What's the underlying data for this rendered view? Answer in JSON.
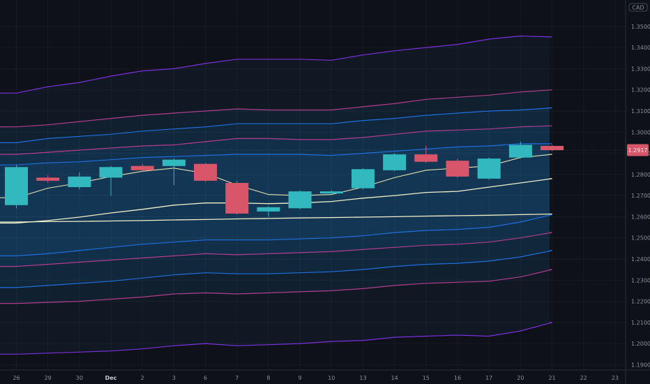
{
  "chart_data": {
    "type": "candlestick",
    "currency_label": "CAD",
    "last_price_label": "1.2917",
    "y_axis": {
      "min": 1.1875,
      "max": 1.3625,
      "ticks": [
        "1.19000",
        "1.20000",
        "1.21000",
        "1.22000",
        "1.23000",
        "1.24000",
        "1.25000",
        "1.26000",
        "1.27000",
        "1.28000",
        "1.29000",
        "1.30000",
        "1.31000",
        "1.32000",
        "1.33000",
        "1.34000",
        "1.35000"
      ]
    },
    "x_axis": {
      "labels": [
        "26",
        "29",
        "30",
        "Dec",
        "2",
        "3",
        "6",
        "7",
        "8",
        "9",
        "10",
        "13",
        "14",
        "15",
        "16",
        "17",
        "20",
        "21",
        "22",
        "23"
      ],
      "bold_labels": [
        "Dec"
      ]
    },
    "candles": [
      {
        "open": 1.2655,
        "close": 1.2835,
        "high": 1.2845,
        "low": 1.264,
        "color": "up"
      },
      {
        "open": 1.277,
        "close": 1.2785,
        "high": 1.2795,
        "low": 1.276,
        "color": "down"
      },
      {
        "open": 1.274,
        "close": 1.279,
        "high": 1.281,
        "low": 1.273,
        "color": "up"
      },
      {
        "open": 1.2785,
        "close": 1.2835,
        "high": 1.284,
        "low": 1.27,
        "color": "up"
      },
      {
        "open": 1.284,
        "close": 1.282,
        "high": 1.285,
        "low": 1.2815,
        "color": "down"
      },
      {
        "open": 1.284,
        "close": 1.287,
        "high": 1.2875,
        "low": 1.275,
        "color": "up"
      },
      {
        "open": 1.285,
        "close": 1.277,
        "high": 1.2855,
        "low": 1.2765,
        "color": "down"
      },
      {
        "open": 1.276,
        "close": 1.2615,
        "high": 1.277,
        "low": 1.261,
        "color": "down"
      },
      {
        "open": 1.2625,
        "close": 1.2645,
        "high": 1.265,
        "low": 1.26,
        "color": "up"
      },
      {
        "open": 1.264,
        "close": 1.272,
        "high": 1.2725,
        "low": 1.2635,
        "color": "up"
      },
      {
        "open": 1.271,
        "close": 1.272,
        "high": 1.2725,
        "low": 1.2705,
        "color": "up"
      },
      {
        "open": 1.2735,
        "close": 1.2825,
        "high": 1.283,
        "low": 1.273,
        "color": "up"
      },
      {
        "open": 1.282,
        "close": 1.2895,
        "high": 1.29,
        "low": 1.2815,
        "color": "up"
      },
      {
        "open": 1.2895,
        "close": 1.286,
        "high": 1.2935,
        "low": 1.2855,
        "color": "down"
      },
      {
        "open": 1.2865,
        "close": 1.279,
        "high": 1.2875,
        "low": 1.2785,
        "color": "down"
      },
      {
        "open": 1.278,
        "close": 1.2875,
        "high": 1.288,
        "low": 1.2775,
        "color": "up"
      },
      {
        "open": 1.288,
        "close": 1.294,
        "high": 1.2955,
        "low": 1.2875,
        "color": "up"
      },
      {
        "open": 1.2935,
        "close": 1.2915,
        "high": 1.294,
        "low": 1.291,
        "color": "down"
      }
    ],
    "lines": {
      "short_ma": [
        1.269,
        1.2735,
        1.276,
        1.279,
        1.2815,
        1.283,
        1.2805,
        1.275,
        1.2705,
        1.27,
        1.2705,
        1.274,
        1.2785,
        1.282,
        1.283,
        1.284,
        1.288,
        1.2895
      ],
      "mid_ma": [
        1.257,
        1.2582,
        1.2598,
        1.2618,
        1.2635,
        1.2655,
        1.2665,
        1.2665,
        1.2662,
        1.2665,
        1.2672,
        1.2688,
        1.27,
        1.2715,
        1.272,
        1.274,
        1.276,
        1.278
      ],
      "long_ma": [
        1.2575,
        1.2577,
        1.2578,
        1.258,
        1.2582,
        1.2585,
        1.2587,
        1.259,
        1.2592,
        1.2594,
        1.2596,
        1.2598,
        1.26,
        1.2603,
        1.2605,
        1.2607,
        1.261,
        1.2613
      ]
    },
    "bands": [
      {
        "color": "#7b2fe0",
        "upper": [
          1.3185,
          1.3215,
          1.3235,
          1.3265,
          1.329,
          1.33,
          1.3325,
          1.3345,
          1.3345,
          1.3345,
          1.334,
          1.3365,
          1.3385,
          1.34,
          1.3415,
          1.344,
          1.3455,
          1.345
        ],
        "lower": [
          1.195,
          1.1955,
          1.196,
          1.1965,
          1.1975,
          1.199,
          1.2,
          1.199,
          1.1995,
          1.2,
          1.201,
          1.2015,
          1.203,
          1.2035,
          1.204,
          1.2035,
          1.206,
          1.21
        ]
      },
      {
        "color": "#b43c8f",
        "upper": [
          1.3025,
          1.3035,
          1.305,
          1.3065,
          1.308,
          1.309,
          1.31,
          1.311,
          1.3105,
          1.3105,
          1.3105,
          1.312,
          1.3135,
          1.3155,
          1.3165,
          1.3175,
          1.319,
          1.32
        ],
        "lower": [
          1.219,
          1.2195,
          1.22,
          1.221,
          1.222,
          1.2235,
          1.224,
          1.2235,
          1.224,
          1.2245,
          1.225,
          1.226,
          1.2275,
          1.2285,
          1.229,
          1.2295,
          1.2315,
          1.235
        ]
      },
      {
        "color": "#1e6fe0",
        "upper": [
          1.295,
          1.297,
          1.298,
          1.299,
          1.3005,
          1.3015,
          1.3025,
          1.304,
          1.304,
          1.304,
          1.304,
          1.3055,
          1.3065,
          1.308,
          1.309,
          1.31,
          1.3105,
          1.3115
        ],
        "lower": [
          1.2265,
          1.2275,
          1.2285,
          1.2295,
          1.231,
          1.2325,
          1.2335,
          1.233,
          1.233,
          1.2335,
          1.234,
          1.235,
          1.2365,
          1.2375,
          1.238,
          1.239,
          1.241,
          1.244
        ]
      },
      {
        "color": "#b43c8f",
        "upper": [
          1.2895,
          1.2905,
          1.2915,
          1.2925,
          1.2935,
          1.294,
          1.2955,
          1.297,
          1.297,
          1.2965,
          1.2965,
          1.2975,
          1.299,
          1.3005,
          1.301,
          1.3015,
          1.3025,
          1.303
        ],
        "lower": [
          1.2365,
          1.2375,
          1.2385,
          1.2395,
          1.2405,
          1.2415,
          1.2425,
          1.242,
          1.2425,
          1.243,
          1.2435,
          1.2445,
          1.2455,
          1.2465,
          1.247,
          1.248,
          1.25,
          1.2525
        ]
      },
      {
        "color": "#1e6fe0",
        "upper": [
          1.2845,
          1.2855,
          1.286,
          1.287,
          1.288,
          1.2885,
          1.289,
          1.2895,
          1.2895,
          1.2895,
          1.289,
          1.29,
          1.291,
          1.292,
          1.293,
          1.2935,
          1.2945,
          1.2945
        ],
        "lower": [
          1.2415,
          1.2425,
          1.244,
          1.2455,
          1.247,
          1.248,
          1.249,
          1.249,
          1.249,
          1.2495,
          1.25,
          1.251,
          1.2525,
          1.2535,
          1.254,
          1.255,
          1.2575,
          1.261
        ]
      }
    ]
  }
}
